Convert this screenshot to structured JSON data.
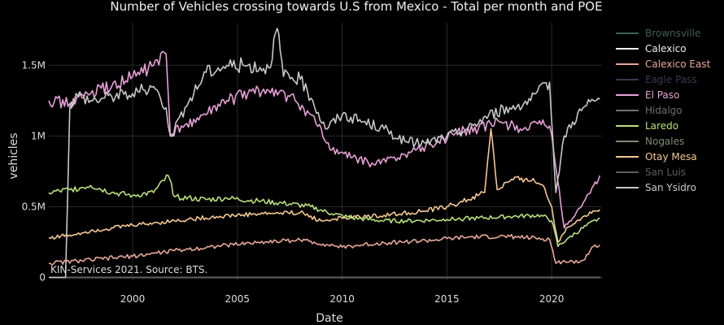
{
  "chart_data": {
    "type": "line",
    "title": "Number of Vehicles crossing towards U.S from Mexico - Total per month and POE",
    "xlabel": "Date",
    "ylabel": "vehicles",
    "x_ticks": [
      {
        "value": 2000,
        "label": "2000"
      },
      {
        "value": 2005,
        "label": "2005"
      },
      {
        "value": 2010,
        "label": "2010"
      },
      {
        "value": 2015,
        "label": "2015"
      },
      {
        "value": 2020,
        "label": "2020"
      }
    ],
    "y_ticks": [
      {
        "value": 0,
        "label": "0"
      },
      {
        "value": 500000,
        "label": "0.5M"
      },
      {
        "value": 1000000,
        "label": "1M"
      },
      {
        "value": 1500000,
        "label": "1.5M"
      }
    ],
    "xlim": [
      1996.0,
      2022.4
    ],
    "ylim": [
      -20000,
      1800000
    ],
    "legend_position": "right",
    "annotation": "KIN-Services 2021. Source: BTS.",
    "series": [
      {
        "name": "Brownsville",
        "color": "#3f5f53",
        "x": [
          1996,
          2000,
          2004,
          2008,
          2012,
          2016,
          2019.9,
          2020.3,
          2022.3
        ],
        "values": [
          0,
          0,
          0,
          0,
          0,
          0,
          0,
          0,
          0
        ]
      },
      {
        "name": "Calexico",
        "color": "#f2f2f2",
        "x": [
          1996,
          2022.3
        ],
        "values": [
          0,
          0
        ]
      },
      {
        "name": "Calexico East",
        "color": "#e8a898",
        "x": [
          1996,
          1998,
          2000,
          2002,
          2004,
          2006,
          2008,
          2010,
          2012,
          2014,
          2016,
          2018,
          2019.9,
          2020.2,
          2020.5,
          2021,
          2021.5,
          2022,
          2022.3
        ],
        "values": [
          100000,
          125000,
          150000,
          190000,
          220000,
          250000,
          265000,
          215000,
          245000,
          260000,
          285000,
          290000,
          270000,
          100000,
          110000,
          115000,
          120000,
          220000,
          230000
        ]
      },
      {
        "name": "Eagle Pass",
        "color": "#353a54",
        "x": [
          1996,
          2022.3
        ],
        "values": [
          0,
          0
        ]
      },
      {
        "name": "El Paso",
        "color": "#e8a0d8",
        "x": [
          1996,
          1997,
          1998,
          1999,
          2000,
          2001,
          2001.6,
          2001.8,
          2002.5,
          2003.5,
          2004.5,
          2005.5,
          2006.5,
          2007.5,
          2008.5,
          2009.5,
          2010.5,
          2011.5,
          2012.5,
          2013.5,
          2014.5,
          2015.5,
          2016.5,
          2017.5,
          2018.5,
          2019.5,
          2019.9,
          2020.2,
          2020.6,
          2021,
          2021.6,
          2022,
          2022.3
        ],
        "values": [
          1250000,
          1230000,
          1300000,
          1350000,
          1420000,
          1500000,
          1580000,
          1000000,
          1080000,
          1150000,
          1250000,
          1300000,
          1320000,
          1280000,
          1150000,
          900000,
          850000,
          800000,
          850000,
          900000,
          950000,
          1030000,
          1050000,
          1100000,
          1050000,
          1080000,
          1070000,
          780000,
          350000,
          420000,
          550000,
          650000,
          720000
        ]
      },
      {
        "name": "Hidalgo",
        "color": "#707070",
        "x": [
          1996,
          2022.3
        ],
        "values": [
          0,
          0
        ]
      },
      {
        "name": "Laredo",
        "color": "#b8e07a",
        "x": [
          1996,
          1997,
          1998,
          1999,
          2000,
          2001,
          2001.7,
          2002,
          2003.5,
          2004.5,
          2006,
          2007.5,
          2008.5,
          2009.5,
          2010.5,
          2012,
          2013.5,
          2015,
          2016.5,
          2018,
          2019.5,
          2020,
          2020.3,
          2020.8,
          2021.5,
          2022.3
        ],
        "values": [
          600000,
          620000,
          650000,
          600000,
          580000,
          600000,
          720000,
          570000,
          550000,
          560000,
          540000,
          520000,
          500000,
          450000,
          420000,
          400000,
          400000,
          410000,
          420000,
          430000,
          440000,
          400000,
          220000,
          280000,
          350000,
          420000
        ]
      },
      {
        "name": "Nogales",
        "color": "#7e8d74",
        "x": [
          1996,
          2022.3
        ],
        "values": [
          0,
          0
        ]
      },
      {
        "name": "Otay Mesa",
        "color": "#f4c892",
        "x": [
          1996,
          1997,
          1998,
          2000,
          2002,
          2004,
          2006,
          2008,
          2009,
          2010,
          2012,
          2014,
          2015,
          2016,
          2016.8,
          2017.1,
          2017.4,
          2018,
          2018.8,
          2019.6,
          2020,
          2020.3,
          2020.7,
          2021.5,
          2022.3
        ],
        "values": [
          280000,
          300000,
          330000,
          370000,
          400000,
          430000,
          450000,
          460000,
          400000,
          420000,
          440000,
          470000,
          500000,
          550000,
          600000,
          1050000,
          620000,
          680000,
          700000,
          650000,
          500000,
          250000,
          350000,
          430000,
          480000
        ]
      },
      {
        "name": "San Luis",
        "color": "#5c5c5c",
        "x": [
          1996,
          2022.3
        ],
        "values": [
          0,
          0
        ]
      },
      {
        "name": "San Ysidro",
        "color": "#c8c8c8",
        "x": [
          1996,
          1996.8,
          1997,
          1997.3,
          1998,
          1999,
          2000,
          2001,
          2001.6,
          2001.8,
          2002.5,
          2003.5,
          2004.5,
          2005.5,
          2006.5,
          2006.9,
          2007.2,
          2008,
          2008.6,
          2009.2,
          2010,
          2011,
          2012,
          2013,
          2014,
          2015,
          2016,
          2017,
          2018,
          2019,
          2019.9,
          2020.2,
          2020.6,
          2021,
          2021.5,
          2022,
          2022.3
        ],
        "values": [
          0,
          0,
          1200000,
          1300000,
          1250000,
          1280000,
          1300000,
          1350000,
          1200000,
          1000000,
          1200000,
          1450000,
          1500000,
          1500000,
          1480000,
          1760000,
          1420000,
          1400000,
          1250000,
          1050000,
          1150000,
          1100000,
          1050000,
          960000,
          950000,
          1000000,
          1050000,
          1150000,
          1200000,
          1250000,
          1380000,
          600000,
          1000000,
          1100000,
          1200000,
          1250000,
          1260000
        ]
      }
    ]
  }
}
